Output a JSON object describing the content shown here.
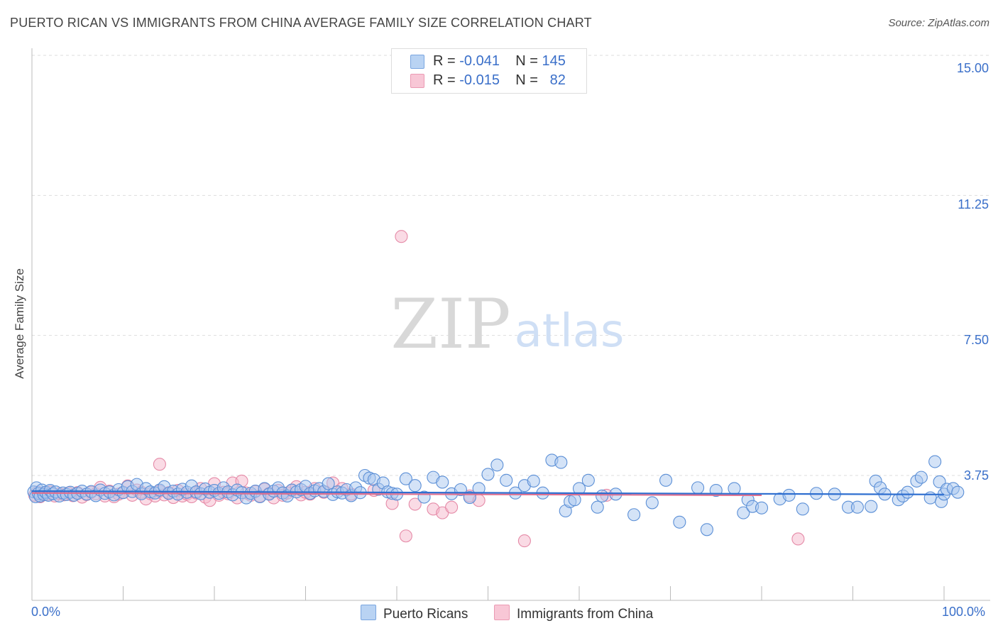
{
  "header": {
    "title": "PUERTO RICAN VS IMMIGRANTS FROM CHINA AVERAGE FAMILY SIZE CORRELATION CHART",
    "source": "Source: ZipAtlas.com"
  },
  "watermark": {
    "zip": "ZIP",
    "atlas": "atlas"
  },
  "legend": {
    "rows": [
      {
        "r_label": "R = ",
        "r_value": "-0.041",
        "n_label": "N = ",
        "n_value": "145"
      },
      {
        "r_label": "R = ",
        "r_value": "-0.015",
        "n_label": "N = ",
        "n_value": "82"
      }
    ]
  },
  "colors": {
    "series_blue_fill": "#a9c8f0",
    "series_blue_stroke": "#5b8fd6",
    "series_blue_line": "#2f6fd0",
    "series_pink_fill": "#f5b8cb",
    "series_pink_stroke": "#e58aa7",
    "series_pink_line": "#e0708f",
    "axis_text": "#3a6fc9",
    "grid": "#dddddd"
  },
  "chart_data": {
    "type": "scatter",
    "title": "PUERTO RICAN VS IMMIGRANTS FROM CHINA AVERAGE FAMILY SIZE CORRELATION CHART",
    "xlabel": "",
    "ylabel": "Average Family Size",
    "xlim": [
      0,
      100
    ],
    "ylim": [
      0,
      15.5
    ],
    "x_tick_labels": [
      "0.0%",
      "100.0%"
    ],
    "y_ticks": [
      3.75,
      7.5,
      11.25,
      15.0
    ],
    "y_tick_labels": [
      "3.75",
      "7.50",
      "11.25",
      "15.00"
    ],
    "legend_position": "top-center",
    "series": [
      {
        "name": "Puerto Ricans",
        "r": -0.041,
        "n": 145,
        "trend": {
          "x": [
            0,
            100
          ],
          "y": [
            3.33,
            3.24
          ]
        },
        "points": [
          [
            0.2,
            3.31
          ],
          [
            0.4,
            3.18
          ],
          [
            0.5,
            3.42
          ],
          [
            0.7,
            3.27
          ],
          [
            0.9,
            3.2
          ],
          [
            1.1,
            3.36
          ],
          [
            1.3,
            3.24
          ],
          [
            1.5,
            3.3
          ],
          [
            1.8,
            3.22
          ],
          [
            2.0,
            3.35
          ],
          [
            2.3,
            3.26
          ],
          [
            2.6,
            3.31
          ],
          [
            3.0,
            3.2
          ],
          [
            3.4,
            3.28
          ],
          [
            3.8,
            3.24
          ],
          [
            4.2,
            3.3
          ],
          [
            4.6,
            3.22
          ],
          [
            5.0,
            3.27
          ],
          [
            5.5,
            3.33
          ],
          [
            6.0,
            3.25
          ],
          [
            6.5,
            3.32
          ],
          [
            7.0,
            3.21
          ],
          [
            7.5,
            3.36
          ],
          [
            8.0,
            3.27
          ],
          [
            8.5,
            3.31
          ],
          [
            9.0,
            3.23
          ],
          [
            9.5,
            3.37
          ],
          [
            10.0,
            3.29
          ],
          [
            10.5,
            3.45
          ],
          [
            11.0,
            3.32
          ],
          [
            11.5,
            3.51
          ],
          [
            12.0,
            3.26
          ],
          [
            12.5,
            3.4
          ],
          [
            13.0,
            3.31
          ],
          [
            13.5,
            3.28
          ],
          [
            14.0,
            3.36
          ],
          [
            14.5,
            3.45
          ],
          [
            15.0,
            3.27
          ],
          [
            15.5,
            3.33
          ],
          [
            16.0,
            3.25
          ],
          [
            16.5,
            3.38
          ],
          [
            17.0,
            3.3
          ],
          [
            17.5,
            3.47
          ],
          [
            18.0,
            3.31
          ],
          [
            18.5,
            3.26
          ],
          [
            19.0,
            3.39
          ],
          [
            19.5,
            3.3
          ],
          [
            20.0,
            3.35
          ],
          [
            20.5,
            3.27
          ],
          [
            21.0,
            3.42
          ],
          [
            21.5,
            3.31
          ],
          [
            22.0,
            3.23
          ],
          [
            22.5,
            3.36
          ],
          [
            23.0,
            3.29
          ],
          [
            23.5,
            3.15
          ],
          [
            24.0,
            3.27
          ],
          [
            24.5,
            3.33
          ],
          [
            25.0,
            3.18
          ],
          [
            25.5,
            3.4
          ],
          [
            26.0,
            3.25
          ],
          [
            26.5,
            3.33
          ],
          [
            27.0,
            3.42
          ],
          [
            27.5,
            3.28
          ],
          [
            28.0,
            3.2
          ],
          [
            28.5,
            3.36
          ],
          [
            29.0,
            3.31
          ],
          [
            29.5,
            3.37
          ],
          [
            30.0,
            3.46
          ],
          [
            30.5,
            3.27
          ],
          [
            31.0,
            3.34
          ],
          [
            31.5,
            3.4
          ],
          [
            32.0,
            3.32
          ],
          [
            32.5,
            3.53
          ],
          [
            33.0,
            3.24
          ],
          [
            33.5,
            3.31
          ],
          [
            34.0,
            3.28
          ],
          [
            34.5,
            3.37
          ],
          [
            35.0,
            3.21
          ],
          [
            35.5,
            3.42
          ],
          [
            36.0,
            3.29
          ],
          [
            36.5,
            3.75
          ],
          [
            37.0,
            3.68
          ],
          [
            37.5,
            3.64
          ],
          [
            38.0,
            3.38
          ],
          [
            38.5,
            3.55
          ],
          [
            39.0,
            3.31
          ],
          [
            39.5,
            3.27
          ],
          [
            40.0,
            3.25
          ],
          [
            41.0,
            3.66
          ],
          [
            42.0,
            3.48
          ],
          [
            43.0,
            3.17
          ],
          [
            44.0,
            3.7
          ],
          [
            45.0,
            3.57
          ],
          [
            46.0,
            3.26
          ],
          [
            47.0,
            3.37
          ],
          [
            48.0,
            3.16
          ],
          [
            49.0,
            3.4
          ],
          [
            50.0,
            3.78
          ],
          [
            51.0,
            4.03
          ],
          [
            52.0,
            3.62
          ],
          [
            53.0,
            3.28
          ],
          [
            54.0,
            3.48
          ],
          [
            55.0,
            3.6
          ],
          [
            56.0,
            3.28
          ],
          [
            57.0,
            4.16
          ],
          [
            58.0,
            4.1
          ],
          [
            58.5,
            2.8
          ],
          [
            59.0,
            3.05
          ],
          [
            59.5,
            3.1
          ],
          [
            60.0,
            3.4
          ],
          [
            61.0,
            3.62
          ],
          [
            62.0,
            2.9
          ],
          [
            62.5,
            3.2
          ],
          [
            64.0,
            3.25
          ],
          [
            66.0,
            2.7
          ],
          [
            68.0,
            3.02
          ],
          [
            69.5,
            3.62
          ],
          [
            71.0,
            2.5
          ],
          [
            73.0,
            3.42
          ],
          [
            74.0,
            2.3
          ],
          [
            75.0,
            3.35
          ],
          [
            77.0,
            3.4
          ],
          [
            78.0,
            2.75
          ],
          [
            78.5,
            3.1
          ],
          [
            79.0,
            2.92
          ],
          [
            80.0,
            2.88
          ],
          [
            82.0,
            3.12
          ],
          [
            83.0,
            3.22
          ],
          [
            84.5,
            2.85
          ],
          [
            86.0,
            3.27
          ],
          [
            88.0,
            3.25
          ],
          [
            89.5,
            2.9
          ],
          [
            90.5,
            2.9
          ],
          [
            92.0,
            2.92
          ],
          [
            92.5,
            3.6
          ],
          [
            93.0,
            3.42
          ],
          [
            93.5,
            3.25
          ],
          [
            95.0,
            3.1
          ],
          [
            95.5,
            3.2
          ],
          [
            96.0,
            3.3
          ],
          [
            97.0,
            3.6
          ],
          [
            97.5,
            3.7
          ],
          [
            98.5,
            3.15
          ],
          [
            99.0,
            4.12
          ],
          [
            99.5,
            3.58
          ],
          [
            99.7,
            3.05
          ],
          [
            100.0,
            3.25
          ],
          [
            100.3,
            3.38
          ],
          [
            101.0,
            3.4
          ],
          [
            101.5,
            3.3
          ]
        ]
      },
      {
        "name": "Immigrants from China",
        "r": -0.015,
        "n": 82,
        "trend": {
          "x": [
            0,
            80
          ],
          "y": [
            3.28,
            3.22
          ]
        },
        "points": [
          [
            0.3,
            3.22
          ],
          [
            0.6,
            3.3
          ],
          [
            0.9,
            3.18
          ],
          [
            1.2,
            3.27
          ],
          [
            1.6,
            3.24
          ],
          [
            2.0,
            3.31
          ],
          [
            2.5,
            3.2
          ],
          [
            3.0,
            3.26
          ],
          [
            3.5,
            3.23
          ],
          [
            4.0,
            3.28
          ],
          [
            4.5,
            3.21
          ],
          [
            5.0,
            3.29
          ],
          [
            5.5,
            3.17
          ],
          [
            6.0,
            3.24
          ],
          [
            6.5,
            3.3
          ],
          [
            7.0,
            3.26
          ],
          [
            7.5,
            3.43
          ],
          [
            8.0,
            3.2
          ],
          [
            8.5,
            3.33
          ],
          [
            9.0,
            3.18
          ],
          [
            9.5,
            3.25
          ],
          [
            10.0,
            3.3
          ],
          [
            10.5,
            3.47
          ],
          [
            11.0,
            3.22
          ],
          [
            11.5,
            3.36
          ],
          [
            12.0,
            3.3
          ],
          [
            12.5,
            3.12
          ],
          [
            13.0,
            3.26
          ],
          [
            13.5,
            3.2
          ],
          [
            14.0,
            3.33
          ],
          [
            14.5,
            3.23
          ],
          [
            15.0,
            3.29
          ],
          [
            15.5,
            3.16
          ],
          [
            16.0,
            3.35
          ],
          [
            16.5,
            3.2
          ],
          [
            17.0,
            3.25
          ],
          [
            17.5,
            3.18
          ],
          [
            18.0,
            3.28
          ],
          [
            18.5,
            3.4
          ],
          [
            19.0,
            3.17
          ],
          [
            19.5,
            3.08
          ],
          [
            20.0,
            3.53
          ],
          [
            20.5,
            3.22
          ],
          [
            21.0,
            3.3
          ],
          [
            21.5,
            3.26
          ],
          [
            22.0,
            3.55
          ],
          [
            22.5,
            3.15
          ],
          [
            23.0,
            3.6
          ],
          [
            23.5,
            3.28
          ],
          [
            24.0,
            3.22
          ],
          [
            24.5,
            3.32
          ],
          [
            25.0,
            3.2
          ],
          [
            25.5,
            3.38
          ],
          [
            26.0,
            3.27
          ],
          [
            26.5,
            3.15
          ],
          [
            27.0,
            3.35
          ],
          [
            27.5,
            3.22
          ],
          [
            28.0,
            3.28
          ],
          [
            28.5,
            3.35
          ],
          [
            29.0,
            3.45
          ],
          [
            29.5,
            3.23
          ],
          [
            30.0,
            3.3
          ],
          [
            30.5,
            3.25
          ],
          [
            31.0,
            3.4
          ],
          [
            32.0,
            3.3
          ],
          [
            33.0,
            3.55
          ],
          [
            34.0,
            3.4
          ],
          [
            35.0,
            3.25
          ],
          [
            37.5,
            3.35
          ],
          [
            39.5,
            3.0
          ],
          [
            42.0,
            2.98
          ],
          [
            44.0,
            2.85
          ],
          [
            45.0,
            2.75
          ],
          [
            46.0,
            2.9
          ],
          [
            48.0,
            3.2
          ],
          [
            49.0,
            3.08
          ],
          [
            41.0,
            2.13
          ],
          [
            40.5,
            10.15
          ],
          [
            54.0,
            2.0
          ],
          [
            63.0,
            3.22
          ],
          [
            84.0,
            2.05
          ],
          [
            14.0,
            4.05
          ]
        ]
      }
    ]
  },
  "axes": {
    "x_left_label": "0.0%",
    "x_right_label": "100.0%",
    "y_labels": [
      "15.00",
      "11.25",
      "7.50",
      "3.75"
    ]
  },
  "bottom_legend": [
    {
      "label": "Puerto Ricans"
    },
    {
      "label": "Immigrants from China"
    }
  ]
}
